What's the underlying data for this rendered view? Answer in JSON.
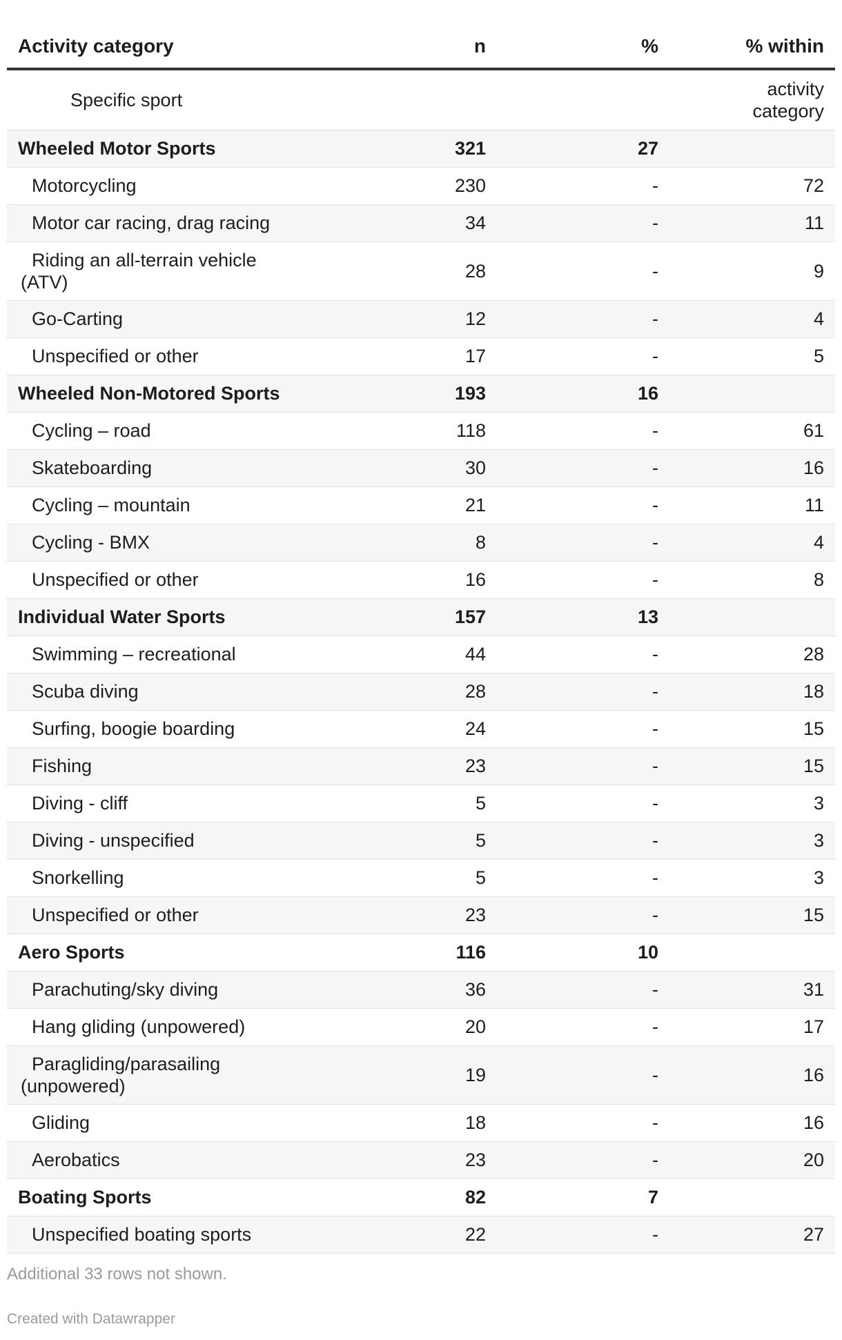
{
  "chart_data": {
    "type": "table",
    "columns": [
      "Activity category",
      "n",
      "%",
      "% within"
    ],
    "subheader": {
      "label": "Specific sport",
      "right_line1": "activity",
      "right_line2": "category"
    },
    "rows": [
      {
        "label": "Wheeled Motor Sports",
        "n": "321",
        "pct": "27",
        "within": "",
        "kind": "category"
      },
      {
        "label": "Motorcycling",
        "n": "230",
        "pct": "-",
        "within": "72",
        "kind": "sport"
      },
      {
        "label": "Motor car racing, drag racing",
        "n": "34",
        "pct": "-",
        "within": "11",
        "kind": "sport"
      },
      {
        "label": "Riding an all-terrain vehicle (ATV)",
        "label_line1": "Riding an all-terrain vehicle",
        "label_line2": "(ATV)",
        "n": "28",
        "pct": "-",
        "within": "9",
        "kind": "sport"
      },
      {
        "label": "Go-Carting",
        "n": "12",
        "pct": "-",
        "within": "4",
        "kind": "sport"
      },
      {
        "label": "Unspecified or other",
        "n": "17",
        "pct": "-",
        "within": "5",
        "kind": "sport"
      },
      {
        "label": "Wheeled Non-Motored Sports",
        "n": "193",
        "pct": "16",
        "within": "",
        "kind": "category"
      },
      {
        "label": "Cycling – road",
        "n": "118",
        "pct": "-",
        "within": "61",
        "kind": "sport"
      },
      {
        "label": "Skateboarding",
        "n": "30",
        "pct": "-",
        "within": "16",
        "kind": "sport"
      },
      {
        "label": "Cycling – mountain",
        "n": "21",
        "pct": "-",
        "within": "11",
        "kind": "sport"
      },
      {
        "label": "Cycling - BMX",
        "n": "8",
        "pct": "-",
        "within": "4",
        "kind": "sport"
      },
      {
        "label": "Unspecified or other",
        "n": "16",
        "pct": "-",
        "within": "8",
        "kind": "sport"
      },
      {
        "label": "Individual Water Sports",
        "n": "157",
        "pct": "13",
        "within": "",
        "kind": "category"
      },
      {
        "label": "Swimming – recreational",
        "n": "44",
        "pct": "-",
        "within": "28",
        "kind": "sport"
      },
      {
        "label": "Scuba diving",
        "n": "28",
        "pct": "-",
        "within": "18",
        "kind": "sport"
      },
      {
        "label": "Surfing, boogie boarding",
        "n": "24",
        "pct": "-",
        "within": "15",
        "kind": "sport"
      },
      {
        "label": "Fishing",
        "n": "23",
        "pct": "-",
        "within": "15",
        "kind": "sport"
      },
      {
        "label": "Diving - cliff",
        "n": "5",
        "pct": "-",
        "within": "3",
        "kind": "sport"
      },
      {
        "label": "Diving - unspecified",
        "n": "5",
        "pct": "-",
        "within": "3",
        "kind": "sport"
      },
      {
        "label": "Snorkelling",
        "n": "5",
        "pct": "-",
        "within": "3",
        "kind": "sport"
      },
      {
        "label": "Unspecified or other",
        "n": "23",
        "pct": "-",
        "within": "15",
        "kind": "sport"
      },
      {
        "label": "Aero Sports",
        "n": "116",
        "pct": "10",
        "within": "",
        "kind": "category"
      },
      {
        "label": "Parachuting/sky diving",
        "n": "36",
        "pct": "-",
        "within": "31",
        "kind": "sport"
      },
      {
        "label": "Hang gliding (unpowered)",
        "n": "20",
        "pct": "-",
        "within": "17",
        "kind": "sport"
      },
      {
        "label": "Paragliding/parasailing (unpowered)",
        "label_line1": "Paragliding/parasailing",
        "label_line2": "(unpowered)",
        "n": "19",
        "pct": "-",
        "within": "16",
        "kind": "sport"
      },
      {
        "label": "Gliding",
        "n": "18",
        "pct": "-",
        "within": "16",
        "kind": "sport"
      },
      {
        "label": "Aerobatics",
        "n": "23",
        "pct": "-",
        "within": "20",
        "kind": "sport"
      },
      {
        "label": "Boating Sports",
        "n": "82",
        "pct": "7",
        "within": "",
        "kind": "category"
      },
      {
        "label": "Unspecified boating sports",
        "n": "22",
        "pct": "-",
        "within": "27",
        "kind": "sport"
      }
    ]
  },
  "footer": {
    "note": "Additional 33 rows not shown.",
    "credit": "Created with Datawrapper"
  }
}
